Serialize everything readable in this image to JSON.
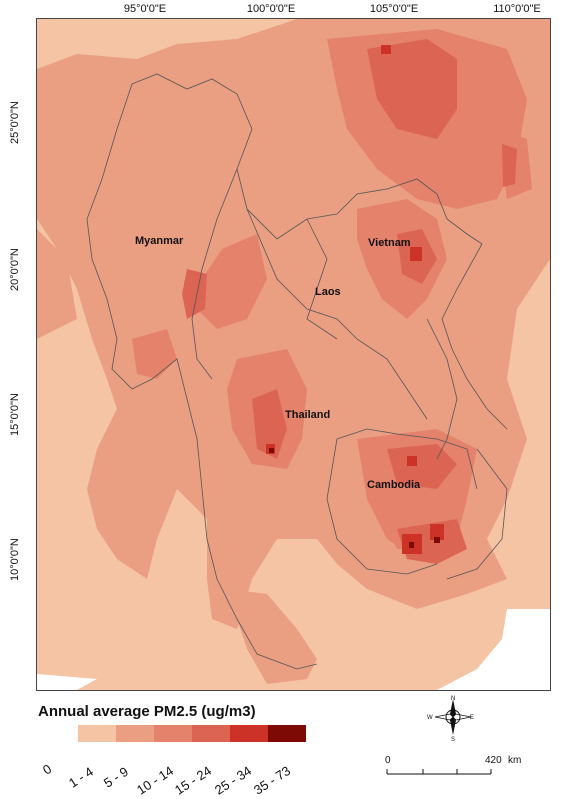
{
  "map": {
    "longitude_labels": [
      "95°0'0\"E",
      "100°0'0\"E",
      "105°0'0\"E",
      "110°0'0\"E"
    ],
    "latitude_labels": [
      "25°0'0\"N",
      "20°0'0\"N",
      "15°0'0\"N",
      "10°0'0\"N"
    ],
    "countries": [
      "Myanmar",
      "Vietnam",
      "Laos",
      "Thailand",
      "Cambodia"
    ]
  },
  "legend": {
    "title": "Annual average PM2.5 (ug/m3)",
    "classes": [
      {
        "label": "0",
        "color": null
      },
      {
        "label": "1 - 4",
        "color": "#f4c4a4"
      },
      {
        "label": "5 - 9",
        "color": "#ea9f83"
      },
      {
        "label": "10 - 14",
        "color": "#e4826b"
      },
      {
        "label": "15 - 24",
        "color": "#dc6452"
      },
      {
        "label": "25 - 34",
        "color": "#cc3326"
      },
      {
        "label": "35 - 73",
        "color": "#7d0a04"
      }
    ]
  },
  "scale_bar": {
    "start": "0",
    "end": "420",
    "unit": "km"
  },
  "compass": {
    "north": "N",
    "south": "S",
    "east": "E",
    "west": "W"
  }
}
